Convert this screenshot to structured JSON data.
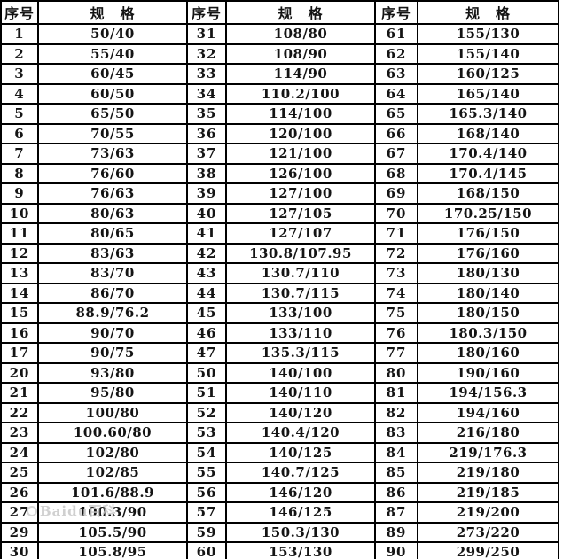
{
  "colors": {
    "background": "#ffffff",
    "grid_border": "#000000",
    "text": "#141414",
    "watermark": "#c8c8c8"
  },
  "header": {
    "serial_label": "序号",
    "spec_label": "规　格"
  },
  "table": {
    "rows": [
      [
        "1",
        "50/40",
        "31",
        "108/80",
        "61",
        "155/130"
      ],
      [
        "2",
        "55/40",
        "32",
        "108/90",
        "62",
        "155/140"
      ],
      [
        "3",
        "60/45",
        "33",
        "114/90",
        "63",
        "160/125"
      ],
      [
        "4",
        "60/50",
        "34",
        "110.2/100",
        "64",
        "165/140"
      ],
      [
        "5",
        "65/50",
        "35",
        "114/100",
        "65",
        "165.3/140"
      ],
      [
        "6",
        "70/55",
        "36",
        "120/100",
        "66",
        "168/140"
      ],
      [
        "7",
        "73/63",
        "37",
        "121/100",
        "67",
        "170.4/140"
      ],
      [
        "8",
        "76/60",
        "38",
        "126/100",
        "68",
        "170.4/145"
      ],
      [
        "9",
        "76/63",
        "39",
        "127/100",
        "69",
        "168/150"
      ],
      [
        "10",
        "80/63",
        "40",
        "127/105",
        "70",
        "170.25/150"
      ],
      [
        "11",
        "80/65",
        "41",
        "127/107",
        "71",
        "176/150"
      ],
      [
        "12",
        "83/63",
        "42",
        "130.8/107.95",
        "72",
        "176/160"
      ],
      [
        "13",
        "83/70",
        "43",
        "130.7/110",
        "73",
        "180/130"
      ],
      [
        "14",
        "86/70",
        "44",
        "130.7/115",
        "74",
        "180/140"
      ],
      [
        "15",
        "88.9/76.2",
        "45",
        "133/100",
        "75",
        "180/150"
      ],
      [
        "16",
        "90/70",
        "46",
        "133/110",
        "76",
        "180.3/150"
      ],
      [
        "17",
        "90/75",
        "47",
        "135.3/115",
        "77",
        "180/160"
      ],
      [
        "20",
        "93/80",
        "50",
        "140/100",
        "80",
        "190/160"
      ],
      [
        "21",
        "95/80",
        "51",
        "140/110",
        "81",
        "194/156.3"
      ],
      [
        "22",
        "100/80",
        "52",
        "140/120",
        "82",
        "194/160"
      ],
      [
        "23",
        "100.60/80",
        "53",
        "140.4/120",
        "83",
        "216/180"
      ],
      [
        "24",
        "102/80",
        "54",
        "140/125",
        "84",
        "219/176.3"
      ],
      [
        "25",
        "102/85",
        "55",
        "140.7/125",
        "85",
        "219/180"
      ],
      [
        "26",
        "101.6/88.9",
        "56",
        "146/120",
        "86",
        "219/185"
      ],
      [
        "27",
        "100.3/90",
        "57",
        "146/125",
        "87",
        "219/200"
      ],
      [
        "29",
        "105.5/90",
        "59",
        "150.3/130",
        "89",
        "273/220"
      ],
      [
        "30",
        "105.8/95",
        "60",
        "153/130",
        "90",
        "299/250"
      ]
    ]
  },
  "watermark": {
    "text": "Baidu百科"
  }
}
